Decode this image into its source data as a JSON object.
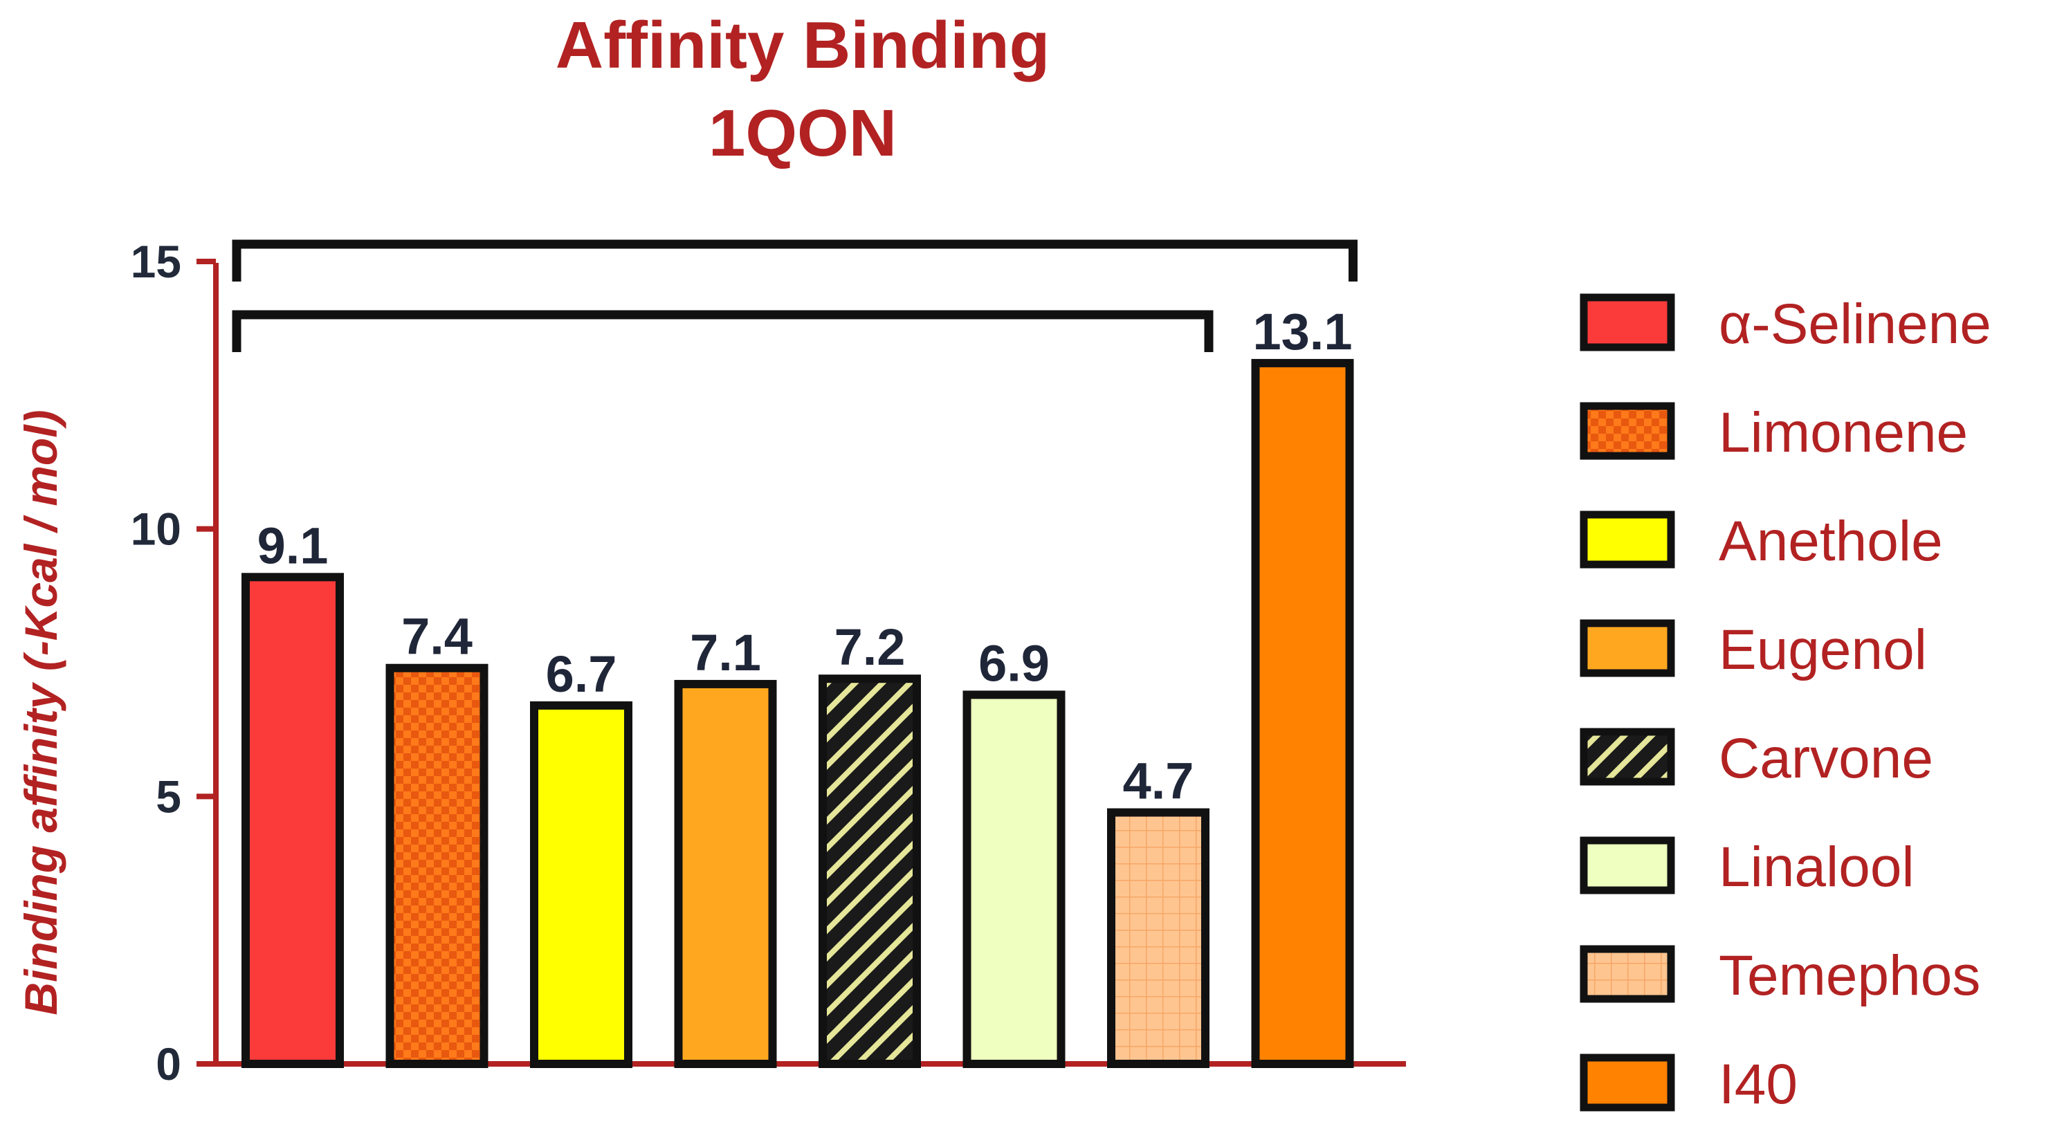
{
  "chart_data": {
    "type": "bar",
    "title": "Affinity Binding",
    "subtitle": "1QON",
    "xlabel": "",
    "ylabel": "Binding affinity (-Kcal / mol)",
    "ylim": [
      0,
      15
    ],
    "yticks": [
      0,
      5,
      10,
      15
    ],
    "grid": false,
    "legend_position": "right",
    "categories": [
      "α-Selinene",
      "Limonene",
      "Anethole",
      "Eugenol",
      "Carvone",
      "Linalool",
      "Temephos",
      "I40"
    ],
    "values": [
      9.1,
      7.4,
      6.7,
      7.1,
      7.2,
      6.9,
      4.7,
      13.1
    ],
    "data_labels": [
      "9.1",
      "7.4",
      "6.7",
      "7.1",
      "7.2",
      "6.9",
      "4.7",
      "13.1"
    ],
    "colors": [
      "#fb3a3a",
      "#ff7a1a",
      "#ffff00",
      "#ffa81f",
      "#1a1a1a",
      "#eeffc0",
      "#ffc591",
      "#ff8200"
    ],
    "patterns": [
      "solid",
      "checker",
      "solid",
      "solid",
      "diagonal-hatch",
      "solid",
      "grid",
      "solid"
    ],
    "axis_color": "#b22222",
    "comparison_brackets": [
      {
        "from": "α-Selinene",
        "to": "I40"
      },
      {
        "from": "α-Selinene",
        "to": "Temephos"
      }
    ]
  }
}
